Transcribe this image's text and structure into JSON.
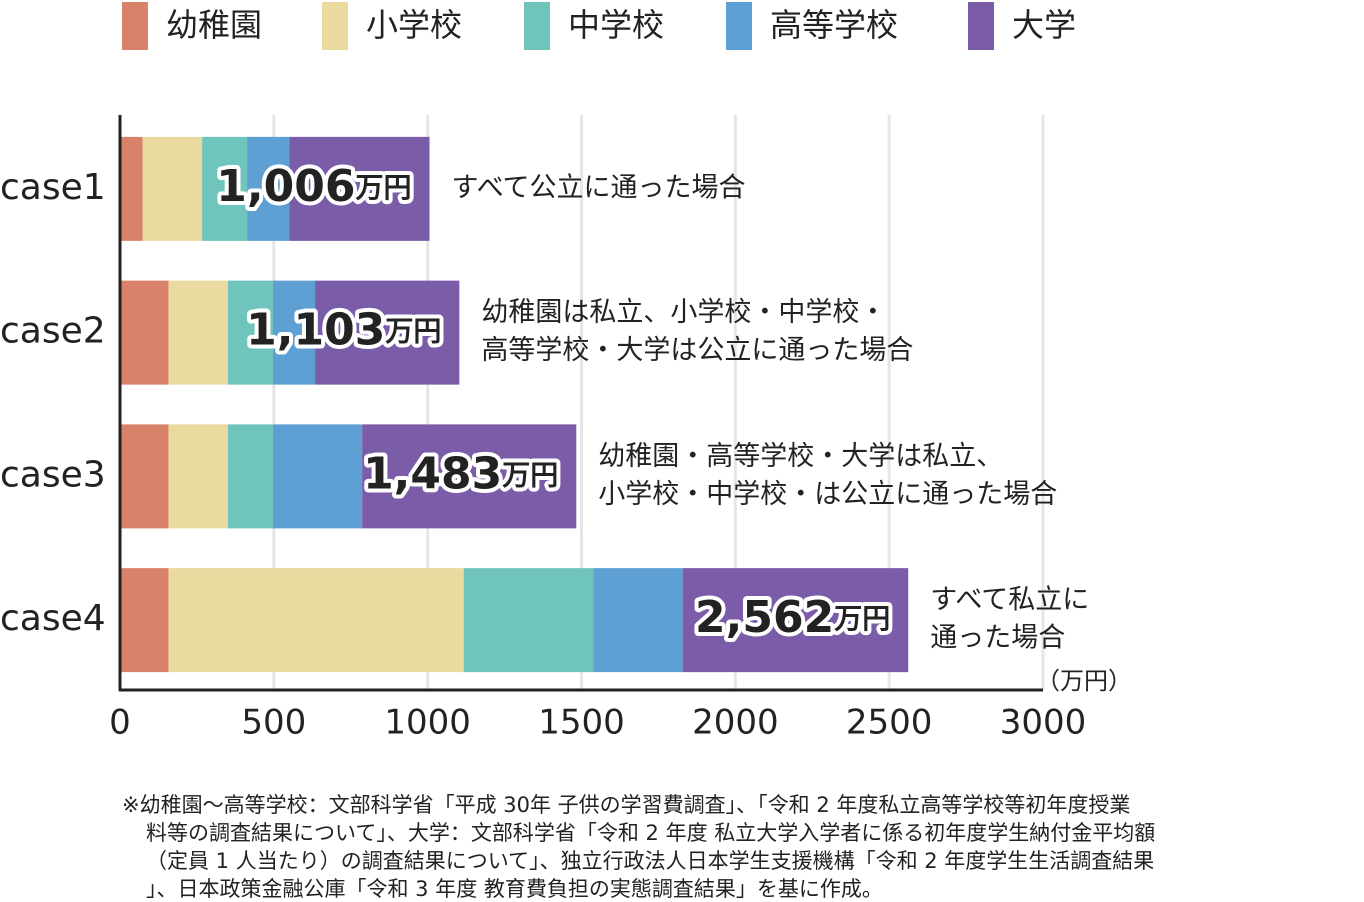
{
  "chart_data": {
    "type": "stacked-bar-horizontal",
    "categories": [
      "case1",
      "case2",
      "case3",
      "case4"
    ],
    "series": [
      {
        "name": "幼稚園",
        "color": "#d9826a",
        "values": [
          74,
          158,
          158,
          158
        ]
      },
      {
        "name": "小学校",
        "color": "#ebdaa0",
        "values": [
          193,
          193,
          193,
          959
        ]
      },
      {
        "name": "中学校",
        "color": "#6fc4bb",
        "values": [
          146,
          146,
          146,
          422
        ]
      },
      {
        "name": "高等学校",
        "color": "#5fa0d4",
        "values": [
          137,
          137,
          290,
          290
        ]
      },
      {
        "name": "大学",
        "color": "#7b5ca8",
        "values": [
          456,
          469,
          696,
          733
        ]
      }
    ],
    "totals": [
      1006,
      1103,
      1483,
      2562
    ],
    "total_labels": [
      "1,006",
      "1,103",
      "1,483",
      "2,562"
    ],
    "total_unit": "万円",
    "annotations": [
      [
        "すべて公立に通った場合"
      ],
      [
        "幼稚園は私立、小学校・中学校・",
        "高等学校・大学は公立に通った場合"
      ],
      [
        "幼稚園・高等学校・大学は私立、",
        "小学校・中学校・は公立に通った場合"
      ],
      [
        "すべて私立に",
        "通った場合"
      ]
    ],
    "x_unit_label": "（万円）",
    "xlim": [
      0,
      3000
    ],
    "xticks": [
      0,
      500,
      1000,
      1500,
      2000,
      2500,
      3000
    ],
    "grid": true,
    "footnote": [
      "※幼稚園〜高等学校：文部科学省「平成 30年 子供の学習費調査」、「令和 2 年度私立高等学校等初年度授業",
      "料等の調査結果について」、大学：文部科学省「令和 2 年度 私立大学入学者に係る初年度学生納付金平均額",
      "（定員 1 人当たり）の調査結果について」、独立行政法人日本学生支援機構「令和 2 年度学生生活調査結果",
      "」、日本政策金融公庫「令和 3 年度 教育費負担の実態調査結果」を基に作成。"
    ]
  }
}
